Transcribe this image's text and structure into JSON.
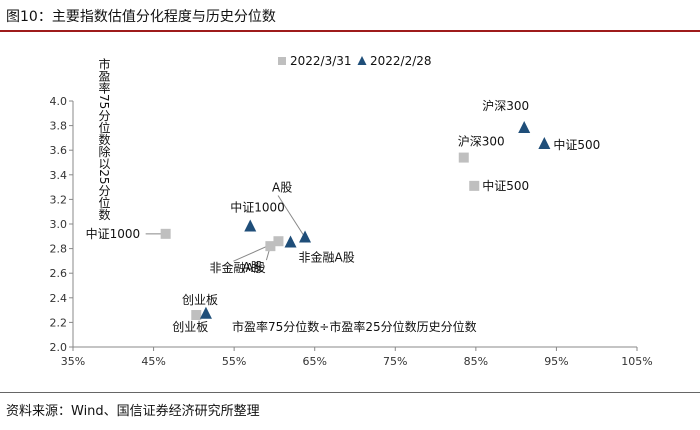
{
  "header": {
    "title": "图10：主要指数估值分化程度与历史分位数"
  },
  "footer": {
    "source": "资料来源：Wind、国信证券经济研究所整理"
  },
  "chart_data": {
    "type": "scatter",
    "xlabel": "市盈率75分位数÷市盈率25分位数历史分位数",
    "ylabel": "市盈率75分位数除以25分位数",
    "xlim": [
      0.35,
      1.05
    ],
    "ylim": [
      2.0,
      4.0
    ],
    "xticks": [
      0.35,
      0.45,
      0.55,
      0.65,
      0.75,
      0.85,
      0.95,
      1.05
    ],
    "xtick_labels": [
      "35%",
      "45%",
      "55%",
      "65%",
      "75%",
      "85%",
      "95%",
      "105%"
    ],
    "yticks": [
      2.0,
      2.2,
      2.4,
      2.6,
      2.8,
      3.0,
      3.2,
      3.4,
      3.6,
      3.8,
      4.0
    ],
    "ytick_labels": [
      "2.0",
      "2.2",
      "2.4",
      "2.6",
      "2.8",
      "3.0",
      "3.2",
      "3.4",
      "3.6",
      "3.8",
      "4.0"
    ],
    "grid": false,
    "legend_position": "top-center",
    "series": [
      {
        "name": "2022/3/31",
        "marker": "square",
        "color": "#bfbfbf",
        "points": [
          {
            "label": "中证1000",
            "x": 0.465,
            "y": 2.92
          },
          {
            "label": "A股",
            "x": 0.595,
            "y": 2.82
          },
          {
            "label": "非金融A股",
            "x": 0.605,
            "y": 2.86
          },
          {
            "label": "创业板",
            "x": 0.503,
            "y": 2.26
          },
          {
            "label": "沪深300",
            "x": 0.835,
            "y": 3.54
          },
          {
            "label": "中证500",
            "x": 0.848,
            "y": 3.31
          }
        ]
      },
      {
        "name": "2022/2/28",
        "marker": "triangle",
        "color": "#1f4e79",
        "points": [
          {
            "label": "中证1000",
            "x": 0.57,
            "y": 2.98
          },
          {
            "label": "A股",
            "x": 0.638,
            "y": 2.89
          },
          {
            "label": "非金融A股",
            "x": 0.62,
            "y": 2.85
          },
          {
            "label": "创业板",
            "x": 0.515,
            "y": 2.27
          },
          {
            "label": "沪深300",
            "x": 0.91,
            "y": 3.78
          },
          {
            "label": "中证500",
            "x": 0.935,
            "y": 3.65
          }
        ]
      }
    ]
  }
}
